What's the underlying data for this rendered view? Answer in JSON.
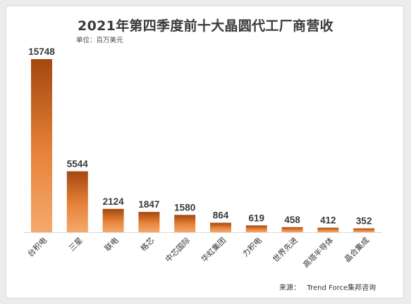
{
  "chart_data": {
    "type": "bar",
    "title": "2021年第四季度前十大晶圆代工厂商营收",
    "unit": "单位：百万美元",
    "source": "来源：   Trend Force集邦咨询",
    "categories": [
      "台积电",
      "三星",
      "联电",
      "格芯",
      "中芯国际",
      "华虹集团",
      "力积电",
      "世界先进",
      "高塔半导体",
      "晶合集成"
    ],
    "values": [
      15748,
      5544,
      2124,
      1847,
      1580,
      864,
      619,
      458,
      412,
      352
    ],
    "ylim": [
      0,
      15748
    ],
    "grid": false,
    "legend": "none",
    "colors": {
      "bar_top": "#a4480f",
      "bar_bottom": "#f4a96c",
      "axis": "#d9d9d9"
    }
  }
}
